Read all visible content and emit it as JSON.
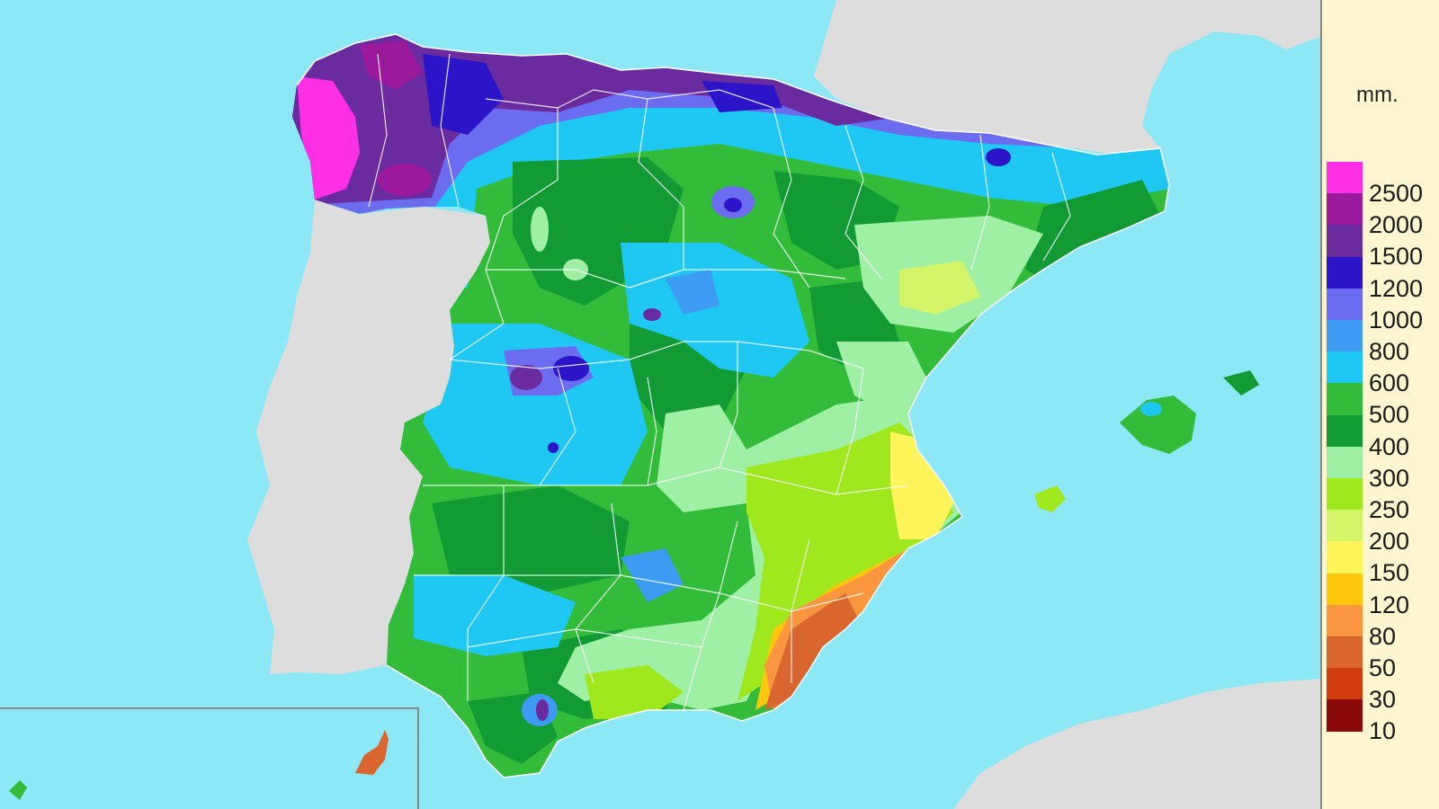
{
  "legend": {
    "unit": "mm.",
    "classes": [
      {
        "label": "2500",
        "color": "#ff2fe6"
      },
      {
        "label": "2000",
        "color": "#9b1a9b"
      },
      {
        "label": "1500",
        "color": "#6a2b9e"
      },
      {
        "label": "1200",
        "color": "#2c14c8"
      },
      {
        "label": "1000",
        "color": "#6b6cf0"
      },
      {
        "label": "800",
        "color": "#3d9bf2"
      },
      {
        "label": "600",
        "color": "#1fc8f2"
      },
      {
        "label": "500",
        "color": "#33bb3a"
      },
      {
        "label": "400",
        "color": "#129a35"
      },
      {
        "label": "300",
        "color": "#9ff0a5"
      },
      {
        "label": "250",
        "color": "#9fe81e"
      },
      {
        "label": "200",
        "color": "#d4f56a"
      },
      {
        "label": "150",
        "color": "#fff55a"
      },
      {
        "label": "120",
        "color": "#fdc70d"
      },
      {
        "label": "80",
        "color": "#f9963f"
      },
      {
        "label": "50",
        "color": "#d8662e"
      },
      {
        "label": "30",
        "color": "#d13c10"
      },
      {
        "label": "10",
        "color": "#8a0a0a"
      }
    ]
  },
  "colors": {
    "sea": "#8de8f5",
    "land_outside": "#dddddd",
    "border": "#ffffff"
  }
}
